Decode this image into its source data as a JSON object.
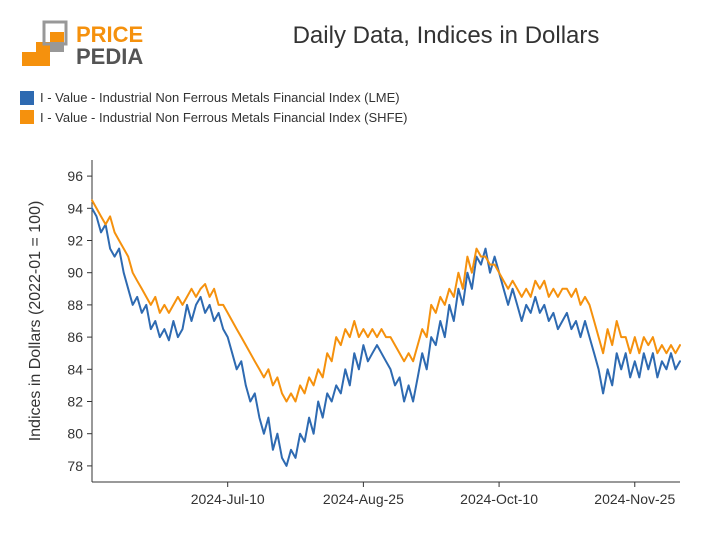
{
  "logo": {
    "text_top": "PRICE",
    "text_bottom": "PEDIA",
    "colors": {
      "orange": "#f5910d",
      "gray": "#989898",
      "dark": "#545454"
    }
  },
  "title": "Daily Data, Indices in Dollars",
  "legend": {
    "items": [
      {
        "label": "I - Value - Industrial Non Ferrous Metals Financial Index (LME)",
        "color": "#2e6ab1"
      },
      {
        "label": "I - Value - Industrial Non Ferrous Metals Financial Index (SHFE)",
        "color": "#f5910d"
      }
    ]
  },
  "chart": {
    "type": "line",
    "background_color": "#ffffff",
    "axis_color": "#333333",
    "tick_color": "#333333",
    "tick_fontsize": 14,
    "line_width": 2,
    "ylabel": "Indices in Dollars (2022-01 = 100)",
    "ylabel_fontsize": 16,
    "ylim": [
      77,
      97
    ],
    "yticks": [
      78,
      80,
      82,
      84,
      86,
      88,
      90,
      92,
      94,
      96
    ],
    "x_index_range": [
      0,
      130
    ],
    "xticks": [
      {
        "i": 30,
        "label": "2024-Jul-10"
      },
      {
        "i": 60,
        "label": "2024-Aug-25"
      },
      {
        "i": 90,
        "label": "2024-Oct-10"
      },
      {
        "i": 120,
        "label": "2024-Nov-25"
      }
    ],
    "series": [
      {
        "name": "LME",
        "color": "#2e6ab1",
        "y": [
          94.0,
          93.5,
          92.5,
          93.0,
          91.5,
          91.0,
          91.5,
          90.0,
          89.0,
          88.0,
          88.5,
          87.5,
          88.0,
          86.5,
          87.0,
          86.0,
          86.5,
          85.8,
          87.0,
          86.0,
          86.5,
          88.0,
          87.0,
          88.0,
          88.5,
          87.5,
          88.0,
          87.0,
          87.5,
          86.5,
          86.0,
          85.0,
          84.0,
          84.5,
          83.0,
          82.0,
          82.5,
          81.0,
          80.0,
          81.0,
          79.0,
          80.0,
          78.5,
          78.0,
          79.0,
          78.5,
          80.0,
          79.5,
          81.0,
          80.0,
          82.0,
          81.0,
          82.5,
          82.0,
          83.0,
          82.5,
          84.0,
          83.0,
          85.0,
          84.0,
          85.5,
          84.5,
          85.0,
          85.5,
          85.0,
          84.5,
          84.0,
          83.0,
          83.5,
          82.0,
          83.0,
          82.0,
          83.5,
          85.0,
          84.0,
          86.0,
          85.5,
          87.0,
          86.0,
          88.0,
          87.0,
          89.0,
          88.0,
          90.0,
          89.0,
          91.0,
          90.5,
          91.5,
          90.0,
          91.0,
          90.0,
          89.0,
          88.0,
          89.0,
          88.0,
          87.0,
          88.0,
          87.5,
          88.5,
          87.5,
          88.0,
          87.0,
          87.5,
          86.5,
          87.0,
          87.5,
          86.5,
          87.0,
          86.0,
          87.0,
          86.0,
          85.0,
          84.0,
          82.5,
          84.0,
          83.0,
          85.0,
          84.0,
          85.0,
          83.5,
          84.5,
          83.5,
          85.0,
          84.0,
          85.0,
          83.5,
          84.5,
          84.0,
          85.0,
          84.0,
          84.5
        ]
      },
      {
        "name": "SHFE",
        "color": "#f5910d",
        "y": [
          94.5,
          94.0,
          93.5,
          93.0,
          93.5,
          92.5,
          92.0,
          91.5,
          91.0,
          90.0,
          89.5,
          89.0,
          88.5,
          88.0,
          88.5,
          87.5,
          88.0,
          87.5,
          88.0,
          88.5,
          88.0,
          88.5,
          89.0,
          88.5,
          89.0,
          89.3,
          88.5,
          89.0,
          88.0,
          88.0,
          87.5,
          87.0,
          86.5,
          86.0,
          85.5,
          85.0,
          84.5,
          84.0,
          83.5,
          84.0,
          83.0,
          83.5,
          82.5,
          82.0,
          82.5,
          82.0,
          83.0,
          82.5,
          83.5,
          83.0,
          84.0,
          83.5,
          85.0,
          84.5,
          86.0,
          85.5,
          86.5,
          86.0,
          87.0,
          86.0,
          86.5,
          86.0,
          86.5,
          86.0,
          86.5,
          86.0,
          86.0,
          85.5,
          85.0,
          84.5,
          85.0,
          84.5,
          85.5,
          86.5,
          86.0,
          88.0,
          87.5,
          88.5,
          88.0,
          89.0,
          88.5,
          90.0,
          89.0,
          91.0,
          90.0,
          91.5,
          91.0,
          91.0,
          90.5,
          90.5,
          90.0,
          89.5,
          89.0,
          89.5,
          89.0,
          88.5,
          89.0,
          88.5,
          89.5,
          89.0,
          89.5,
          88.5,
          89.0,
          88.5,
          89.0,
          89.0,
          88.5,
          89.0,
          88.0,
          88.5,
          88.0,
          87.0,
          86.0,
          85.0,
          86.5,
          85.5,
          87.0,
          86.0,
          86.0,
          85.0,
          86.0,
          85.0,
          86.0,
          85.5,
          86.0,
          85.0,
          85.5,
          85.0,
          85.5,
          85.0,
          85.5
        ]
      }
    ]
  }
}
